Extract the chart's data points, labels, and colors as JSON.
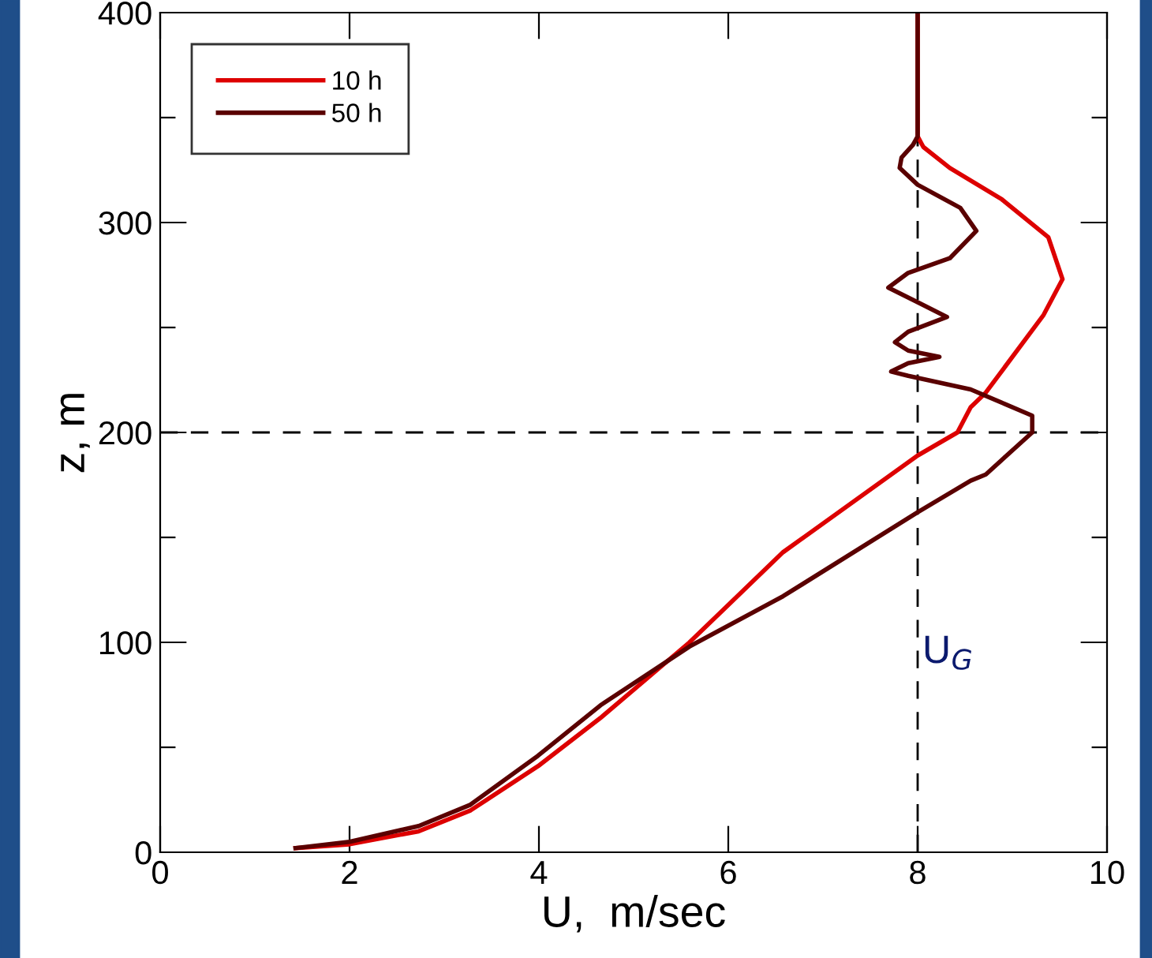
{
  "chart_data": {
    "type": "line",
    "xlabel": "U,  m/sec",
    "ylabel": "z, m",
    "xlim": [
      0,
      10
    ],
    "xticks": [
      0,
      2,
      4,
      6,
      8,
      10
    ],
    "ylim": [
      0,
      400
    ],
    "yticks": [
      0,
      {
        "value": 50,
        "label": null
      },
      100,
      {
        "value": 150,
        "label": null
      },
      200,
      {
        "value": 250,
        "label": null
      },
      300,
      {
        "value": 350,
        "label": null
      },
      400
    ],
    "grid": false,
    "legend": "top left",
    "line_style": "solid",
    "marker": "none",
    "series": [
      {
        "name": "10 h",
        "color": "#dd0000",
        "x": [
          1.43,
          2.0,
          2.73,
          3.28,
          3.99,
          4.65,
          5.59,
          6.58,
          8.0,
          8.42,
          8.56,
          8.72,
          9.33,
          9.53,
          9.38,
          8.89,
          8.34,
          8.06,
          8.0,
          8.0
        ],
        "values": [
          2,
          3.8,
          10,
          20,
          41,
          64,
          100,
          143,
          189,
          200,
          212,
          219,
          256,
          273,
          293,
          311,
          326,
          336,
          341,
          400
        ]
      },
      {
        "name": "50 h",
        "color": "#5a0000",
        "x": [
          1.43,
          2.0,
          2.73,
          3.27,
          3.99,
          4.65,
          5.59,
          6.58,
          8.0,
          8.56,
          8.72,
          9.21,
          9.21,
          8.56,
          7.9,
          7.72,
          7.9,
          8.23,
          7.9,
          7.76,
          7.9,
          8.31,
          8.0,
          7.69,
          7.9,
          8.34,
          8.62,
          8.45,
          8.0,
          7.81,
          7.83,
          7.95,
          8.0,
          8.0
        ],
        "values": [
          2,
          5,
          12.5,
          22.5,
          46,
          70,
          98,
          122,
          162,
          177,
          180,
          200,
          208,
          220.5,
          227,
          229,
          233,
          236,
          239,
          243,
          248,
          255,
          262,
          269,
          276,
          283,
          296,
          307,
          318,
          326,
          331,
          337,
          341,
          400
        ]
      }
    ],
    "ref_lines": [
      {
        "axis": "x",
        "value": 8,
        "color": "#000000",
        "line_style": "dashed"
      },
      {
        "axis": "y",
        "value": 200,
        "color": "#000000",
        "line_style": "dashed"
      }
    ],
    "annotations": [
      {
        "text": "U$_{G}$",
        "x": 8,
        "y": 95
      }
    ]
  }
}
